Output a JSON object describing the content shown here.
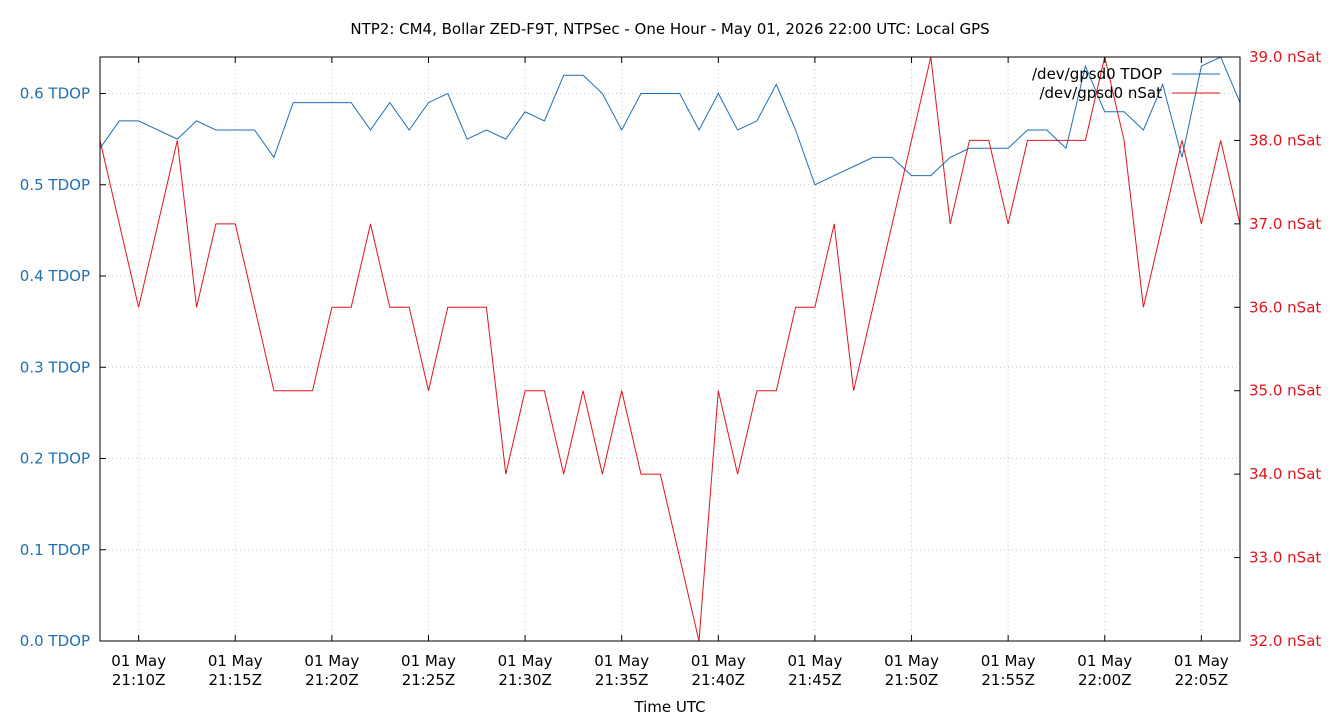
{
  "chart_data": {
    "type": "line",
    "title": "NTP2: CM4, Bollar ZED-F9T, NTPSec - One Hour - May 01, 2026 22:00 UTC: Local GPS",
    "xlabel": "Time UTC",
    "x_range": [
      "2026-05-01T21:08:00Z",
      "2026-05-01T22:07:00Z"
    ],
    "x_ticks": [
      {
        "time": "2026-05-01T21:10:00Z",
        "line1": "01 May",
        "line2": "21:10Z"
      },
      {
        "time": "2026-05-01T21:15:00Z",
        "line1": "01 May",
        "line2": "21:15Z"
      },
      {
        "time": "2026-05-01T21:20:00Z",
        "line1": "01 May",
        "line2": "21:20Z"
      },
      {
        "time": "2026-05-01T21:25:00Z",
        "line1": "01 May",
        "line2": "21:25Z"
      },
      {
        "time": "2026-05-01T21:30:00Z",
        "line1": "01 May",
        "line2": "21:30Z"
      },
      {
        "time": "2026-05-01T21:35:00Z",
        "line1": "01 May",
        "line2": "21:35Z"
      },
      {
        "time": "2026-05-01T21:40:00Z",
        "line1": "01 May",
        "line2": "21:40Z"
      },
      {
        "time": "2026-05-01T21:45:00Z",
        "line1": "01 May",
        "line2": "21:45Z"
      },
      {
        "time": "2026-05-01T21:50:00Z",
        "line1": "01 May",
        "line2": "21:50Z"
      },
      {
        "time": "2026-05-01T21:55:00Z",
        "line1": "01 May",
        "line2": "21:55Z"
      },
      {
        "time": "2026-05-01T22:00:00Z",
        "line1": "01 May",
        "line2": "22:00Z"
      },
      {
        "time": "2026-05-01T22:05:00Z",
        "line1": "01 May",
        "line2": "22:05Z"
      }
    ],
    "y_left": {
      "range": [
        0.0,
        0.64
      ],
      "ticks": [
        0.0,
        0.1,
        0.2,
        0.3,
        0.4,
        0.5,
        0.6
      ],
      "tick_labels": [
        "0.0 TDOP",
        "0.1 TDOP",
        "0.2 TDOP",
        "0.3 TDOP",
        "0.4 TDOP",
        "0.5 TDOP",
        "0.6 TDOP"
      ]
    },
    "y_right": {
      "range": [
        32.0,
        39.0
      ],
      "ticks": [
        32,
        33,
        34,
        35,
        36,
        37,
        38,
        39
      ],
      "tick_labels": [
        "32.0 nSat",
        "33.0 nSat",
        "34.0 nSat",
        "35.0 nSat",
        "36.0 nSat",
        "37.0 nSat",
        "38.0 nSat",
        "39.0 nSat"
      ]
    },
    "grid": true,
    "legend_position": "top-right",
    "series": [
      {
        "name": "/dev/gpsd0 TDOP",
        "axis": "left",
        "color": "#1f6fb4",
        "points": [
          [
            "2026-05-01T21:08:00Z",
            0.54
          ],
          [
            "2026-05-01T21:09:00Z",
            0.57
          ],
          [
            "2026-05-01T21:10:00Z",
            0.57
          ],
          [
            "2026-05-01T21:11:00Z",
            0.56
          ],
          [
            "2026-05-01T21:12:00Z",
            0.55
          ],
          [
            "2026-05-01T21:13:00Z",
            0.57
          ],
          [
            "2026-05-01T21:14:00Z",
            0.56
          ],
          [
            "2026-05-01T21:15:00Z",
            0.56
          ],
          [
            "2026-05-01T21:16:00Z",
            0.56
          ],
          [
            "2026-05-01T21:17:00Z",
            0.53
          ],
          [
            "2026-05-01T21:18:00Z",
            0.59
          ],
          [
            "2026-05-01T21:19:00Z",
            0.59
          ],
          [
            "2026-05-01T21:20:00Z",
            0.59
          ],
          [
            "2026-05-01T21:21:00Z",
            0.59
          ],
          [
            "2026-05-01T21:22:00Z",
            0.56
          ],
          [
            "2026-05-01T21:23:00Z",
            0.59
          ],
          [
            "2026-05-01T21:24:00Z",
            0.56
          ],
          [
            "2026-05-01T21:25:00Z",
            0.59
          ],
          [
            "2026-05-01T21:26:00Z",
            0.6
          ],
          [
            "2026-05-01T21:27:00Z",
            0.55
          ],
          [
            "2026-05-01T21:28:00Z",
            0.56
          ],
          [
            "2026-05-01T21:29:00Z",
            0.55
          ],
          [
            "2026-05-01T21:30:00Z",
            0.58
          ],
          [
            "2026-05-01T21:31:00Z",
            0.57
          ],
          [
            "2026-05-01T21:32:00Z",
            0.62
          ],
          [
            "2026-05-01T21:33:00Z",
            0.62
          ],
          [
            "2026-05-01T21:34:00Z",
            0.6
          ],
          [
            "2026-05-01T21:35:00Z",
            0.56
          ],
          [
            "2026-05-01T21:36:00Z",
            0.6
          ],
          [
            "2026-05-01T21:37:00Z",
            0.6
          ],
          [
            "2026-05-01T21:38:00Z",
            0.6
          ],
          [
            "2026-05-01T21:39:00Z",
            0.56
          ],
          [
            "2026-05-01T21:40:00Z",
            0.6
          ],
          [
            "2026-05-01T21:41:00Z",
            0.56
          ],
          [
            "2026-05-01T21:42:00Z",
            0.57
          ],
          [
            "2026-05-01T21:43:00Z",
            0.61
          ],
          [
            "2026-05-01T21:44:00Z",
            0.56
          ],
          [
            "2026-05-01T21:45:00Z",
            0.5
          ],
          [
            "2026-05-01T21:46:00Z",
            0.51
          ],
          [
            "2026-05-01T21:47:00Z",
            0.52
          ],
          [
            "2026-05-01T21:48:00Z",
            0.53
          ],
          [
            "2026-05-01T21:49:00Z",
            0.53
          ],
          [
            "2026-05-01T21:50:00Z",
            0.51
          ],
          [
            "2026-05-01T21:51:00Z",
            0.51
          ],
          [
            "2026-05-01T21:52:00Z",
            0.53
          ],
          [
            "2026-05-01T21:53:00Z",
            0.54
          ],
          [
            "2026-05-01T21:54:00Z",
            0.54
          ],
          [
            "2026-05-01T21:55:00Z",
            0.54
          ],
          [
            "2026-05-01T21:56:00Z",
            0.56
          ],
          [
            "2026-05-01T21:57:00Z",
            0.56
          ],
          [
            "2026-05-01T21:58:00Z",
            0.54
          ],
          [
            "2026-05-01T21:59:00Z",
            0.63
          ],
          [
            "2026-05-01T22:00:00Z",
            0.58
          ],
          [
            "2026-05-01T22:01:00Z",
            0.58
          ],
          [
            "2026-05-01T22:02:00Z",
            0.56
          ],
          [
            "2026-05-01T22:03:00Z",
            0.61
          ],
          [
            "2026-05-01T22:04:00Z",
            0.53
          ],
          [
            "2026-05-01T22:05:00Z",
            0.63
          ],
          [
            "2026-05-01T22:06:00Z",
            0.64
          ],
          [
            "2026-05-01T22:07:00Z",
            0.59
          ]
        ]
      },
      {
        "name": "/dev/gpsd0 nSat",
        "axis": "right",
        "color": "#e0141e",
        "points": [
          [
            "2026-05-01T21:08:00Z",
            38
          ],
          [
            "2026-05-01T21:10:00Z",
            36
          ],
          [
            "2026-05-01T21:12:00Z",
            38
          ],
          [
            "2026-05-01T21:13:00Z",
            36
          ],
          [
            "2026-05-01T21:14:00Z",
            37
          ],
          [
            "2026-05-01T21:15:00Z",
            37
          ],
          [
            "2026-05-01T21:17:00Z",
            35
          ],
          [
            "2026-05-01T21:18:00Z",
            35
          ],
          [
            "2026-05-01T21:19:00Z",
            35
          ],
          [
            "2026-05-01T21:20:00Z",
            36
          ],
          [
            "2026-05-01T21:21:00Z",
            36
          ],
          [
            "2026-05-01T21:22:00Z",
            37
          ],
          [
            "2026-05-01T21:23:00Z",
            36
          ],
          [
            "2026-05-01T21:24:00Z",
            36
          ],
          [
            "2026-05-01T21:25:00Z",
            35
          ],
          [
            "2026-05-01T21:26:00Z",
            36
          ],
          [
            "2026-05-01T21:27:00Z",
            36
          ],
          [
            "2026-05-01T21:28:00Z",
            36
          ],
          [
            "2026-05-01T21:29:00Z",
            34
          ],
          [
            "2026-05-01T21:30:00Z",
            35
          ],
          [
            "2026-05-01T21:31:00Z",
            35
          ],
          [
            "2026-05-01T21:32:00Z",
            34
          ],
          [
            "2026-05-01T21:33:00Z",
            35
          ],
          [
            "2026-05-01T21:34:00Z",
            34
          ],
          [
            "2026-05-01T21:35:00Z",
            35
          ],
          [
            "2026-05-01T21:36:00Z",
            34
          ],
          [
            "2026-05-01T21:37:00Z",
            34
          ],
          [
            "2026-05-01T21:39:00Z",
            32
          ],
          [
            "2026-05-01T21:40:00Z",
            35
          ],
          [
            "2026-05-01T21:41:00Z",
            34
          ],
          [
            "2026-05-01T21:42:00Z",
            35
          ],
          [
            "2026-05-01T21:43:00Z",
            35
          ],
          [
            "2026-05-01T21:44:00Z",
            36
          ],
          [
            "2026-05-01T21:45:00Z",
            36
          ],
          [
            "2026-05-01T21:46:00Z",
            37
          ],
          [
            "2026-05-01T21:47:00Z",
            35
          ],
          [
            "2026-05-01T21:51:00Z",
            39
          ],
          [
            "2026-05-01T21:52:00Z",
            37
          ],
          [
            "2026-05-01T21:53:00Z",
            38
          ],
          [
            "2026-05-01T21:54:00Z",
            38
          ],
          [
            "2026-05-01T21:55:00Z",
            37
          ],
          [
            "2026-05-01T21:56:00Z",
            38
          ],
          [
            "2026-05-01T21:57:00Z",
            38
          ],
          [
            "2026-05-01T21:58:00Z",
            38
          ],
          [
            "2026-05-01T21:59:00Z",
            38
          ],
          [
            "2026-05-01T22:00:00Z",
            39
          ],
          [
            "2026-05-01T22:01:00Z",
            38
          ],
          [
            "2026-05-01T22:02:00Z",
            36
          ],
          [
            "2026-05-01T22:04:00Z",
            38
          ],
          [
            "2026-05-01T22:05:00Z",
            37
          ],
          [
            "2026-05-01T22:06:00Z",
            38
          ],
          [
            "2026-05-01T22:07:00Z",
            37
          ]
        ]
      }
    ]
  }
}
